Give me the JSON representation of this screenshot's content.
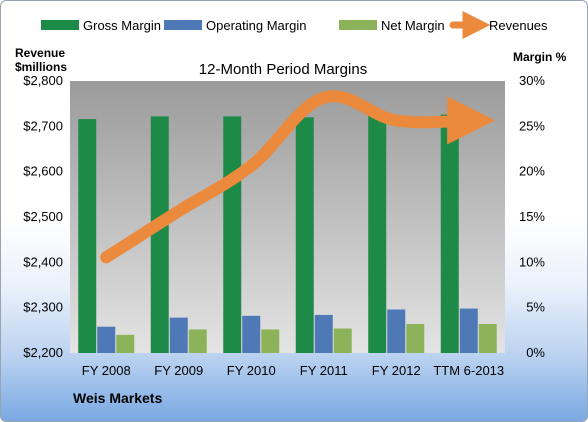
{
  "chart_data": {
    "type": "bar",
    "title": "12-Month Period Margins",
    "company": "Weis Markets",
    "ylabel_left_line1": "Revenue",
    "ylabel_left_line2": "$millions",
    "ylabel_right": "Margin %",
    "categories": [
      "FY 2008",
      "FY 2009",
      "FY 2010",
      "FY 2011",
      "FY 2012",
      "TTM 6-2013"
    ],
    "y_left_ticks": [
      "$2,200",
      "$2,300",
      "$2,400",
      "$2,500",
      "$2,600",
      "$2,700",
      "$2,800"
    ],
    "y_left_range": [
      2200,
      2800
    ],
    "y_right_ticks": [
      "0%",
      "5%",
      "10%",
      "15%",
      "20%",
      "25%",
      "30%"
    ],
    "y_right_range": [
      0,
      30
    ],
    "grid": false,
    "legend_position": "top",
    "series": [
      {
        "name": "Gross Margin",
        "kind": "bar",
        "axis": "right",
        "color": "#1e8a47",
        "values": [
          25.8,
          26.1,
          26.1,
          26.0,
          26.2,
          26.3
        ]
      },
      {
        "name": "Operating Margin",
        "kind": "bar",
        "axis": "right",
        "color": "#4f78b6",
        "values": [
          2.9,
          3.9,
          4.1,
          4.2,
          4.8,
          4.9
        ]
      },
      {
        "name": "Net Margin",
        "kind": "bar",
        "axis": "right",
        "color": "#8db35a",
        "values": [
          2.0,
          2.6,
          2.6,
          2.7,
          3.2,
          3.2
        ]
      },
      {
        "name": "Revenues",
        "kind": "line",
        "axis": "left",
        "color": "#eb8a3c",
        "values": [
          2411,
          2513,
          2613,
          2763,
          2713,
          2713
        ]
      }
    ]
  }
}
